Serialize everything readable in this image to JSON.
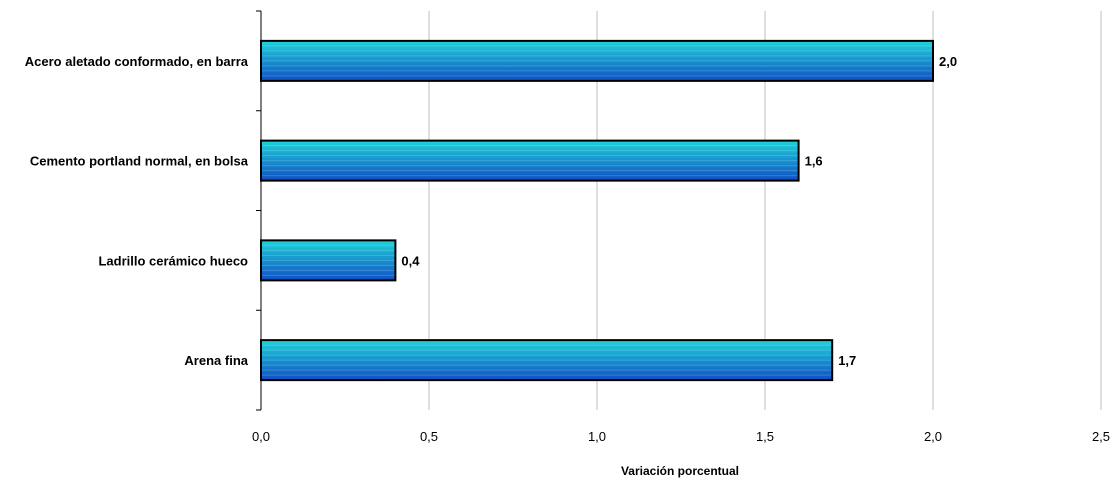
{
  "chart_data": {
    "type": "bar",
    "orientation": "horizontal",
    "categories": [
      "Acero aletado conformado, en barra",
      "Cemento portland normal, en bolsa",
      "Ladrillo cerámico hueco",
      "Arena fina"
    ],
    "values": [
      2.0,
      1.6,
      0.4,
      1.7
    ],
    "value_labels": [
      "2,0",
      "1,6",
      "0,4",
      "1,7"
    ],
    "xlabel": "Variación porcentual",
    "xlim": [
      0,
      2.5
    ],
    "x_ticks": [
      0,
      0.5,
      1.0,
      1.5,
      2.0,
      2.5
    ],
    "x_tick_labels": [
      "0,0",
      "0,5",
      "1,0",
      "1,5",
      "2,0",
      "2,5"
    ],
    "grid": true,
    "legend": "none",
    "bar_gradient": [
      "#1fd3d9",
      "#0f4fc4"
    ],
    "gridline_color": "#bfbfbf"
  }
}
